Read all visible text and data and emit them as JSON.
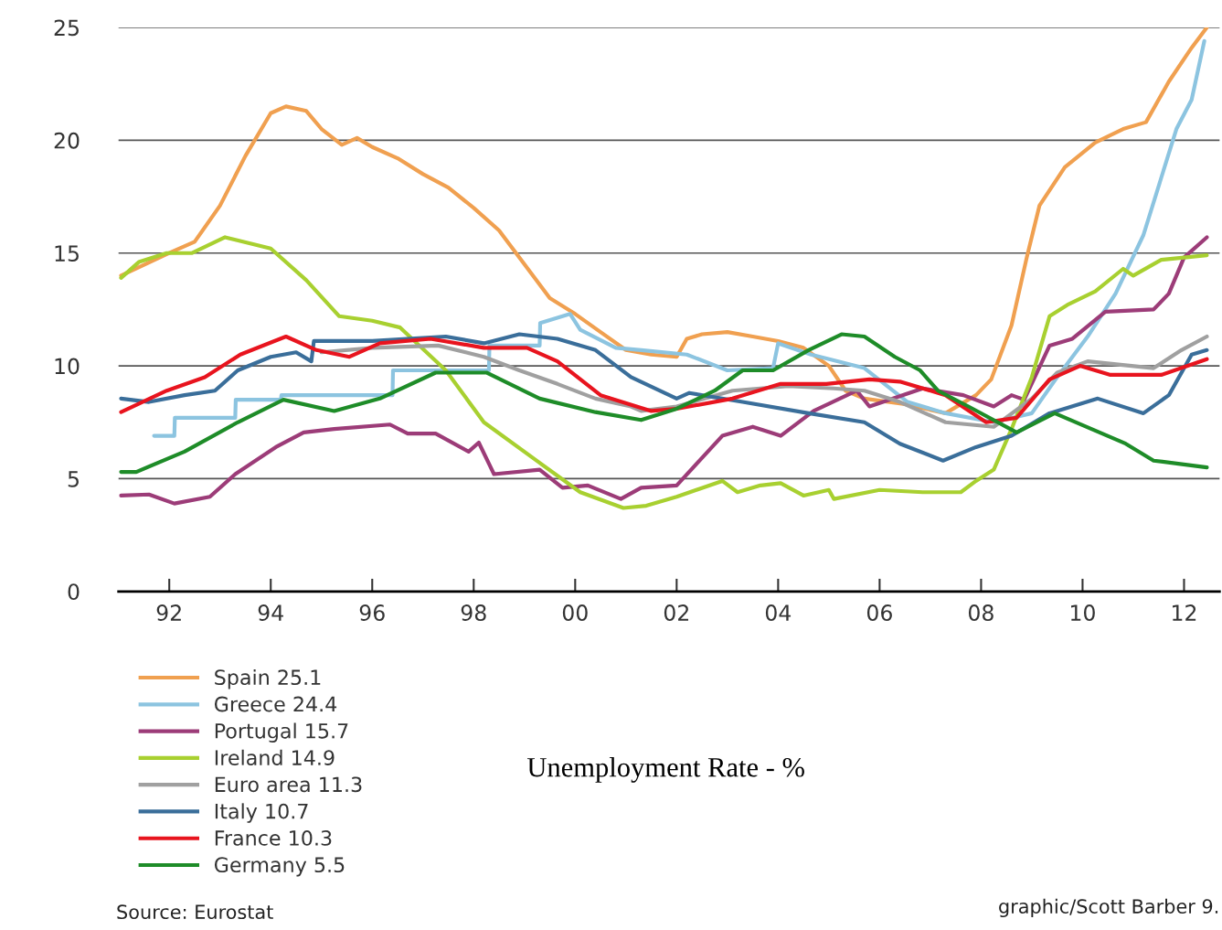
{
  "chart_data": {
    "type": "line",
    "title": "Unemployment Rate - %",
    "annotations": [
      "Source: Eurostat",
      "graphic/Scott Barber 9."
    ],
    "xlim": [
      1991.0,
      2012.7
    ],
    "xticks": [
      {
        "value": 1992,
        "label": "92"
      },
      {
        "value": 1994,
        "label": "94"
      },
      {
        "value": 1996,
        "label": "96"
      },
      {
        "value": 1998,
        "label": "98"
      },
      {
        "value": 2000,
        "label": "00"
      },
      {
        "value": 2002,
        "label": "02"
      },
      {
        "value": 2004,
        "label": "04"
      },
      {
        "value": 2006,
        "label": "06"
      },
      {
        "value": 2008,
        "label": "08"
      },
      {
        "value": 2010,
        "label": "10"
      },
      {
        "value": 2012,
        "label": "12"
      }
    ],
    "ylim": [
      0,
      25
    ],
    "yticks": [
      0,
      5,
      10,
      15,
      20,
      25
    ],
    "grid": "y",
    "legend": "bottom left",
    "marker": "none",
    "line_style": "solid",
    "series": [
      {
        "name": "Spain 25.1",
        "color": "#f0a050",
        "x": [
          1991.05,
          1992,
          1992.5,
          1993,
          1993.5,
          1994,
          1994.3,
          1994.7,
          1995,
          1995.4,
          1995.7,
          1996,
          1996.5,
          1997,
          1997.5,
          1998,
          1998.5,
          1999,
          1999.5,
          2000,
          2000.5,
          2001,
          2001.5,
          2002,
          2002.2,
          2002.5,
          2003,
          2003.5,
          2004,
          2004.5,
          2005,
          2005.33,
          2005.7,
          2006.5,
          2007.3,
          2007.9,
          2008.2,
          2008.6,
          2008.9,
          2009.15,
          2009.65,
          2010.25,
          2010.8,
          2011.25,
          2011.7,
          2012.15,
          2012.45
        ],
        "values": [
          14.0,
          15.0,
          15.5,
          17.1,
          19.3,
          21.2,
          21.5,
          21.3,
          20.5,
          19.8,
          20.1,
          19.7,
          19.2,
          18.5,
          17.9,
          17.0,
          16.0,
          14.5,
          13.0,
          12.3,
          11.5,
          10.7,
          10.5,
          10.4,
          11.2,
          11.4,
          11.5,
          11.3,
          11.1,
          10.8,
          10.0,
          8.9,
          8.55,
          8.3,
          7.9,
          8.7,
          9.4,
          11.8,
          14.8,
          17.1,
          18.8,
          19.9,
          20.5,
          20.8,
          22.6,
          24.1,
          25.0
        ]
      },
      {
        "name": "Greece 24.4",
        "color": "#8cc4e0",
        "x": [
          1991.7,
          1992.1,
          1992.11,
          1993.3,
          1993.31,
          1994.2,
          1994.21,
          1996.4,
          1996.41,
          1998.3,
          1998.31,
          1999.3,
          1999.31,
          1999.9,
          2000.1,
          2000.8,
          2001.3,
          2002.2,
          2003.0,
          2003.9,
          2004.0,
          2004.65,
          2005.7,
          2006.55,
          2007.3,
          2008.25,
          2009.0,
          2009.5,
          2010.1,
          2010.65,
          2011.2,
          2011.85,
          2012.15,
          2012.4
        ],
        "values": [
          6.9,
          6.9,
          7.7,
          7.7,
          8.5,
          8.5,
          8.7,
          8.7,
          9.8,
          9.8,
          10.9,
          10.9,
          11.9,
          12.3,
          11.6,
          10.8,
          10.7,
          10.5,
          9.8,
          9.9,
          11.0,
          10.5,
          9.9,
          8.4,
          7.9,
          7.5,
          7.9,
          9.5,
          11.3,
          13.2,
          15.8,
          20.5,
          21.8,
          24.4
        ]
      },
      {
        "name": "Portugal 15.7",
        "color": "#9c3c78",
        "x": [
          1991.05,
          1991.6,
          1992.1,
          1992.8,
          1993.3,
          1994.1,
          1994.65,
          1995.25,
          1996.35,
          1996.7,
          1997.25,
          1997.9,
          1998.1,
          1998.4,
          1999.3,
          1999.75,
          2000.25,
          2000.9,
          2001.3,
          2002.0,
          2002.9,
          2003.5,
          2004.05,
          2004.7,
          2005.55,
          2005.8,
          2006.85,
          2007.65,
          2008.25,
          2008.6,
          2008.85,
          2009.35,
          2009.8,
          2010.45,
          2011.4,
          2011.7,
          2012.0,
          2012.45
        ],
        "values": [
          4.25,
          4.3,
          3.9,
          4.2,
          5.2,
          6.4,
          7.05,
          7.2,
          7.4,
          7.0,
          7.0,
          6.2,
          6.6,
          5.2,
          5.4,
          4.6,
          4.7,
          4.1,
          4.6,
          4.7,
          6.9,
          7.3,
          6.9,
          8.0,
          8.9,
          8.2,
          9.0,
          8.7,
          8.2,
          8.7,
          8.5,
          10.9,
          11.2,
          12.4,
          12.5,
          13.2,
          14.8,
          15.7
        ]
      },
      {
        "name": "Ireland 14.9",
        "color": "#a8d030",
        "x": [
          1991.05,
          1991.4,
          1991.95,
          1992.45,
          1993.1,
          1994.0,
          1994.7,
          1995.35,
          1996.0,
          1996.55,
          1997.45,
          1998.2,
          1999.3,
          2000.1,
          2000.95,
          2001.4,
          2002.0,
          2002.9,
          2003.2,
          2003.65,
          2004.05,
          2004.5,
          2005.0,
          2005.1,
          2006.0,
          2006.85,
          2007.6,
          2007.9,
          2008.25,
          2008.6,
          2009.0,
          2009.35,
          2009.7,
          2010.25,
          2010.8,
          2011.0,
          2011.55,
          2012.45
        ],
        "values": [
          13.9,
          14.6,
          15.0,
          15.0,
          15.7,
          15.2,
          13.8,
          12.2,
          12.0,
          11.7,
          9.8,
          7.5,
          5.7,
          4.4,
          3.7,
          3.8,
          4.2,
          4.9,
          4.4,
          4.7,
          4.8,
          4.25,
          4.5,
          4.1,
          4.5,
          4.4,
          4.4,
          4.9,
          5.4,
          7.2,
          9.5,
          12.2,
          12.7,
          13.3,
          14.3,
          14.0,
          14.7,
          14.9
        ]
      },
      {
        "name": "Euro area 11.3",
        "color": "#a0a0a0",
        "x": [
          1995.0,
          1996.0,
          1997.3,
          1998.2,
          1998.9,
          1999.65,
          2000.4,
          2001.1,
          2001.3,
          2002.0,
          2003.1,
          2004.2,
          2005.1,
          2005.7,
          2006.4,
          2007.3,
          2008.25,
          2009.0,
          2009.5,
          2010.1,
          2011.4,
          2011.95,
          2012.45
        ],
        "values": [
          10.6,
          10.8,
          10.9,
          10.4,
          9.8,
          9.2,
          8.55,
          8.2,
          8.0,
          8.2,
          8.9,
          9.1,
          9.0,
          8.9,
          8.4,
          7.5,
          7.3,
          8.55,
          9.7,
          10.2,
          9.9,
          10.7,
          11.3
        ]
      },
      {
        "name": "Italy 10.7",
        "color": "#3a6e9a",
        "x": [
          1991.05,
          1991.6,
          1992.3,
          1992.9,
          1993.35,
          1994.0,
          1994.5,
          1994.8,
          1994.85,
          1996.0,
          1997.45,
          1998.2,
          1998.9,
          1999.65,
          2000.4,
          2001.1,
          2002.0,
          2002.25,
          2003.3,
          2004.6,
          2005.7,
          2006.4,
          2007.25,
          2007.9,
          2008.6,
          2009.35,
          2010.3,
          2011.2,
          2011.7,
          2012.15,
          2012.45
        ],
        "values": [
          8.55,
          8.4,
          8.7,
          8.9,
          9.8,
          10.4,
          10.6,
          10.2,
          11.1,
          11.1,
          11.3,
          11.0,
          11.4,
          11.2,
          10.7,
          9.5,
          8.55,
          8.8,
          8.4,
          7.9,
          7.5,
          6.55,
          5.8,
          6.4,
          6.9,
          7.9,
          8.55,
          7.9,
          8.7,
          10.5,
          10.7
        ]
      },
      {
        "name": "France 10.3",
        "color": "#e8141e",
        "x": [
          1991.05,
          1991.95,
          1992.7,
          1993.4,
          1994.3,
          1994.9,
          1995.55,
          1996.15,
          1997.15,
          1998.2,
          1999.05,
          1999.65,
          2000.5,
          2001.5,
          2002.0,
          2003.1,
          2004.05,
          2004.95,
          2005.8,
          2006.4,
          2007.3,
          2008.1,
          2008.7,
          2009.35,
          2009.95,
          2010.55,
          2011.55,
          2012.45
        ],
        "values": [
          7.95,
          8.9,
          9.5,
          10.5,
          11.3,
          10.7,
          10.4,
          11.0,
          11.2,
          10.8,
          10.8,
          10.2,
          8.7,
          8.0,
          8.1,
          8.55,
          9.2,
          9.2,
          9.4,
          9.3,
          8.7,
          7.5,
          7.7,
          9.4,
          10.0,
          9.6,
          9.6,
          10.3
        ]
      },
      {
        "name": "Germany 5.5",
        "color": "#1e8c28",
        "x": [
          1991.05,
          1991.35,
          1992.3,
          1993.35,
          1994.25,
          1995.25,
          1996.15,
          1997.25,
          1998.25,
          1999.3,
          2000.4,
          2001.3,
          2002.0,
          2002.75,
          2003.3,
          2003.9,
          2004.6,
          2005.25,
          2005.7,
          2006.3,
          2006.8,
          2007.15,
          2007.75,
          2008.7,
          2009.45,
          2010.85,
          2011.4,
          2012.45
        ],
        "values": [
          5.3,
          5.3,
          6.2,
          7.5,
          8.5,
          8.0,
          8.55,
          9.7,
          9.7,
          8.55,
          7.95,
          7.6,
          8.1,
          8.9,
          9.8,
          9.8,
          10.7,
          11.4,
          11.3,
          10.4,
          9.8,
          8.9,
          8.2,
          7.05,
          7.9,
          6.55,
          5.8,
          5.5
        ]
      }
    ]
  }
}
